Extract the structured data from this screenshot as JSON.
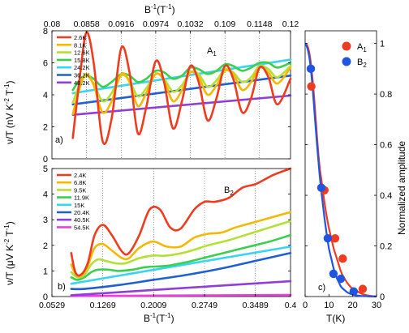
{
  "figure": {
    "top_axis_label_main": "B",
    "top_axis_label_sup": "-1",
    "top_axis_label_unit": "(T",
    "top_axis_label_unit_sup": "-1",
    "top_axis_label_close": ")",
    "bottom_axis_label_main": "B",
    "bottom_axis_label_sup": "-1",
    "bottom_axis_label_unit": "(T",
    "bottom_axis_label_unit_sup": "-1",
    "bottom_axis_label_close": ")",
    "panel_a_ylabel": "ν/T (nV K",
    "panel_a_ylabel_sup1": "-2",
    "panel_a_ylabel_mid": " T",
    "panel_a_ylabel_sup2": "-1",
    "panel_a_ylabel_end": ")",
    "panel_b_ylabel": "ν/T (μV K",
    "panel_b_ylabel_sup1": "-2",
    "panel_b_ylabel_mid": " T",
    "panel_b_ylabel_sup2": "-1",
    "panel_b_ylabel_end": ")",
    "panel_c_xlabel": "T(K)",
    "panel_c_ylabel": "Normalized amplitude",
    "panel_a_tag": "a)",
    "panel_b_tag": "b)",
    "panel_c_tag": "c)",
    "annot_a_main": "A",
    "annot_a_sub": "1",
    "annot_b_main": "B",
    "annot_b_sub": "2"
  },
  "chart_data": [
    {
      "id": "a",
      "type": "line",
      "top_ticks": [
        "0.08",
        "0.0858",
        "0.0916",
        "0.0974",
        "0.1032",
        "0.109",
        "0.1148",
        "0.12"
      ],
      "top_tick_values": [
        0.08,
        0.0858,
        0.0916,
        0.0974,
        0.1032,
        0.109,
        0.1148,
        0.12
      ],
      "xlim": [
        0.08,
        0.12
      ],
      "ylim": [
        0,
        8
      ],
      "y_ticks": [
        "0",
        "2",
        "4",
        "6",
        "8"
      ],
      "y_tick_values": [
        0,
        2,
        4,
        6,
        8
      ],
      "grid": "vertical dotted lines at top tick values",
      "legend_position": "top-left",
      "series": [
        {
          "name": "2.6K",
          "color": "#ef3b1f",
          "osc": true,
          "x": [
            0.0835,
            0.0848,
            0.0858,
            0.087,
            0.0885,
            0.09,
            0.0916,
            0.093,
            0.0944,
            0.0958,
            0.0974,
            0.0988,
            0.1003,
            0.1018,
            0.1032,
            0.1046,
            0.1061,
            0.1076,
            0.109,
            0.1104,
            0.1119,
            0.1134,
            0.1148,
            0.1163,
            0.1178,
            0.12
          ],
          "y": [
            1.3,
            5.5,
            7.9,
            6.0,
            1.1,
            2.5,
            6.9,
            5.4,
            1.6,
            3.2,
            6.1,
            4.8,
            1.9,
            3.6,
            5.8,
            4.8,
            2.4,
            3.8,
            5.8,
            5.0,
            2.9,
            3.8,
            5.7,
            5.1,
            3.4,
            5.0
          ]
        },
        {
          "name": "8.1K",
          "color": "#f5b800",
          "osc": true,
          "x": [
            0.0835,
            0.0848,
            0.0858,
            0.087,
            0.0885,
            0.09,
            0.0916,
            0.093,
            0.0944,
            0.0958,
            0.0974,
            0.0988,
            0.1003,
            0.1018,
            0.1032,
            0.1046,
            0.1061,
            0.1076,
            0.109,
            0.1104,
            0.1119,
            0.1134,
            0.1148,
            0.1163,
            0.1178,
            0.12
          ],
          "y": [
            2.8,
            4.6,
            5.3,
            4.6,
            2.9,
            3.6,
            5.3,
            4.8,
            3.3,
            4.1,
            5.3,
            4.9,
            3.6,
            4.3,
            5.4,
            5.1,
            4.0,
            4.6,
            5.5,
            5.3,
            4.3,
            4.8,
            5.7,
            5.4,
            4.7,
            5.7
          ]
        },
        {
          "name": "12.6K",
          "color": "#b2e033",
          "osc": true,
          "x": [
            0.0835,
            0.0848,
            0.0858,
            0.087,
            0.0885,
            0.09,
            0.0916,
            0.093,
            0.0944,
            0.0958,
            0.0974,
            0.0988,
            0.1003,
            0.1018,
            0.1032,
            0.1046,
            0.1061,
            0.1076,
            0.109,
            0.1104,
            0.1119,
            0.1134,
            0.1148,
            0.1163,
            0.1178,
            0.12
          ],
          "y": [
            3.5,
            4.8,
            5.2,
            4.7,
            3.6,
            4.1,
            5.2,
            4.9,
            3.9,
            4.4,
            5.3,
            5.0,
            4.2,
            4.6,
            5.4,
            5.3,
            4.5,
            4.9,
            5.6,
            5.4,
            4.8,
            5.1,
            5.8,
            5.6,
            5.1,
            5.8
          ]
        },
        {
          "name": "15.8K",
          "color": "#3ccf4e",
          "osc": true,
          "x": [
            0.0835,
            0.0848,
            0.0858,
            0.087,
            0.0885,
            0.09,
            0.0916,
            0.093,
            0.0944,
            0.0958,
            0.0974,
            0.0988,
            0.1003,
            0.1018,
            0.1032,
            0.1046,
            0.1061,
            0.1076,
            0.109,
            0.1104,
            0.1119,
            0.1134,
            0.1148,
            0.1163,
            0.1178,
            0.12
          ],
          "y": [
            4.3,
            5.0,
            5.2,
            5.0,
            4.5,
            4.8,
            5.3,
            5.2,
            4.8,
            5.0,
            5.5,
            5.4,
            5.0,
            5.2,
            5.7,
            5.6,
            5.3,
            5.5,
            5.9,
            5.8,
            5.5,
            5.7,
            6.0,
            6.0,
            5.7,
            6.0
          ]
        },
        {
          "name": "24.2K",
          "color": "#39d4f0",
          "osc": false,
          "x": [
            0.0835,
            0.12
          ],
          "y": [
            4.1,
            6.2
          ]
        },
        {
          "name": "36.2K",
          "color": "#1f5fcf",
          "osc": false,
          "x": [
            0.0835,
            0.12
          ],
          "y": [
            3.4,
            5.2
          ]
        },
        {
          "name": "48.2K",
          "color": "#8f3fd6",
          "osc": false,
          "x": [
            0.0835,
            0.12
          ],
          "y": [
            2.75,
            3.95
          ]
        }
      ]
    },
    {
      "id": "b",
      "type": "line",
      "xlabel": "B-1(T-1)",
      "x_ticks": [
        "0.0529",
        "0.1269",
        "0.2009",
        "0.2749",
        "0.3489",
        "0.4"
      ],
      "x_tick_values": [
        0.0529,
        0.1269,
        0.2009,
        0.2749,
        0.3489,
        0.4
      ],
      "xlim": [
        0.0529,
        0.4
      ],
      "ylim": [
        0,
        5
      ],
      "y_ticks": [
        "0",
        "1",
        "2",
        "3",
        "4",
        "5"
      ],
      "y_tick_values": [
        0,
        1,
        2,
        3,
        4,
        5
      ],
      "grid": "vertical dotted lines at x tick values",
      "legend_position": "top-left",
      "series": [
        {
          "name": "2.4K",
          "color": "#ef3b1f",
          "x": [
            0.081,
            0.087,
            0.095,
            0.105,
            0.115,
            0.127,
            0.14,
            0.155,
            0.165,
            0.18,
            0.195,
            0.21,
            0.225,
            0.24,
            0.26,
            0.275,
            0.29,
            0.31,
            0.33,
            0.35,
            0.375,
            0.4
          ],
          "y": [
            1.7,
            0.95,
            0.85,
            1.3,
            2.4,
            2.8,
            2.4,
            1.75,
            1.7,
            2.4,
            3.4,
            3.4,
            2.7,
            2.65,
            3.4,
            3.7,
            3.7,
            3.85,
            4.25,
            4.4,
            4.75,
            5.0
          ]
        },
        {
          "name": "6.8K",
          "color": "#f5b800",
          "x": [
            0.081,
            0.087,
            0.095,
            0.105,
            0.115,
            0.127,
            0.14,
            0.155,
            0.165,
            0.18,
            0.2,
            0.22,
            0.24,
            0.26,
            0.28,
            0.3,
            0.32,
            0.34,
            0.36,
            0.38,
            0.4
          ],
          "y": [
            1.25,
            0.9,
            0.8,
            1.2,
            1.9,
            2.05,
            1.8,
            1.5,
            1.5,
            1.9,
            2.15,
            1.95,
            1.95,
            2.3,
            2.45,
            2.5,
            2.7,
            2.85,
            3.0,
            3.15,
            3.3
          ]
        },
        {
          "name": "9.5K",
          "color": "#b2e033",
          "x": [
            0.081,
            0.09,
            0.1,
            0.11,
            0.12,
            0.13,
            0.145,
            0.16,
            0.18,
            0.2,
            0.22,
            0.25,
            0.28,
            0.31,
            0.34,
            0.37,
            0.4
          ],
          "y": [
            0.95,
            0.75,
            0.85,
            1.25,
            1.45,
            1.4,
            1.3,
            1.3,
            1.5,
            1.6,
            1.6,
            1.75,
            2.0,
            2.2,
            2.45,
            2.7,
            2.95
          ]
        },
        {
          "name": "11.9K",
          "color": "#3ccf4e",
          "x": [
            0.081,
            0.09,
            0.1,
            0.11,
            0.12,
            0.135,
            0.15,
            0.17,
            0.19,
            0.22,
            0.25,
            0.28,
            0.31,
            0.34,
            0.37,
            0.4
          ],
          "y": [
            0.75,
            0.65,
            0.75,
            0.95,
            1.05,
            1.05,
            1.0,
            1.05,
            1.15,
            1.2,
            1.35,
            1.55,
            1.75,
            1.95,
            2.15,
            2.4
          ]
        },
        {
          "name": "15K",
          "color": "#39d4f0",
          "x": [
            0.081,
            0.4
          ],
          "y": [
            0.5,
            1.95
          ]
        },
        {
          "name": "20.4K",
          "color": "#1f5fcf",
          "x": [
            0.081,
            0.1,
            0.15,
            0.2,
            0.25,
            0.3,
            0.35,
            0.4
          ],
          "y": [
            0.3,
            0.3,
            0.45,
            0.65,
            0.85,
            1.1,
            1.4,
            1.7
          ]
        },
        {
          "name": "40.5K",
          "color": "#8f3fd6",
          "x": [
            0.081,
            0.4
          ],
          "y": [
            0.05,
            0.6
          ]
        },
        {
          "name": "54.5K",
          "color": "#f03ce0",
          "x": [
            0.081,
            0.4
          ],
          "y": [
            0.02,
            0.06
          ]
        }
      ]
    },
    {
      "id": "c",
      "type": "scatter",
      "xlabel": "T(K)",
      "ylabel": "Normalized amplitude",
      "x_ticks": [
        "0",
        "10",
        "20",
        "30"
      ],
      "x_tick_values": [
        0,
        10,
        20,
        30
      ],
      "y_ticks": [
        "0",
        "0.2",
        "0.4",
        "0.6",
        "0.8",
        "1"
      ],
      "y_tick_values": [
        0,
        0.2,
        0.4,
        0.6,
        0.8,
        1
      ],
      "xlim": [
        0,
        30
      ],
      "ylim": [
        0,
        1.05
      ],
      "legend_position": "top-right",
      "series": [
        {
          "name": "A1",
          "color": "#ef3b1f",
          "points_x": [
            2.6,
            8.1,
            12.6,
            15.8,
            24.2
          ],
          "points_y": [
            0.83,
            0.42,
            0.23,
            0.15,
            0.03
          ],
          "fit_x": [
            0,
            1,
            2,
            3,
            4,
            5,
            6,
            7,
            8,
            9,
            10,
            11,
            12,
            13,
            14,
            15,
            16,
            18,
            20,
            22,
            24,
            26,
            28,
            30
          ],
          "fit_y": [
            1.0,
            0.99,
            0.95,
            0.87,
            0.76,
            0.63,
            0.52,
            0.45,
            0.38,
            0.32,
            0.27,
            0.23,
            0.19,
            0.16,
            0.13,
            0.1,
            0.08,
            0.05,
            0.03,
            0.02,
            0.01,
            0.005,
            0.002,
            0.0
          ]
        },
        {
          "name": "B2",
          "color": "#1f55e0",
          "points_x": [
            2.4,
            6.8,
            9.5,
            11.9,
            15,
            20.4
          ],
          "points_y": [
            0.9,
            0.43,
            0.23,
            0.09,
            0.07,
            0.02
          ],
          "fit_x": [
            0,
            1,
            2,
            3,
            4,
            5,
            6,
            7,
            8,
            9,
            10,
            11,
            12,
            13,
            14,
            15,
            16,
            18,
            20,
            22,
            24,
            26,
            28,
            30
          ],
          "fit_y": [
            1.0,
            0.98,
            0.93,
            0.84,
            0.72,
            0.6,
            0.49,
            0.4,
            0.32,
            0.25,
            0.19,
            0.15,
            0.11,
            0.08,
            0.06,
            0.04,
            0.03,
            0.015,
            0.008,
            0.004,
            0.002,
            0.001,
            0.0,
            0.0
          ]
        }
      ]
    }
  ]
}
